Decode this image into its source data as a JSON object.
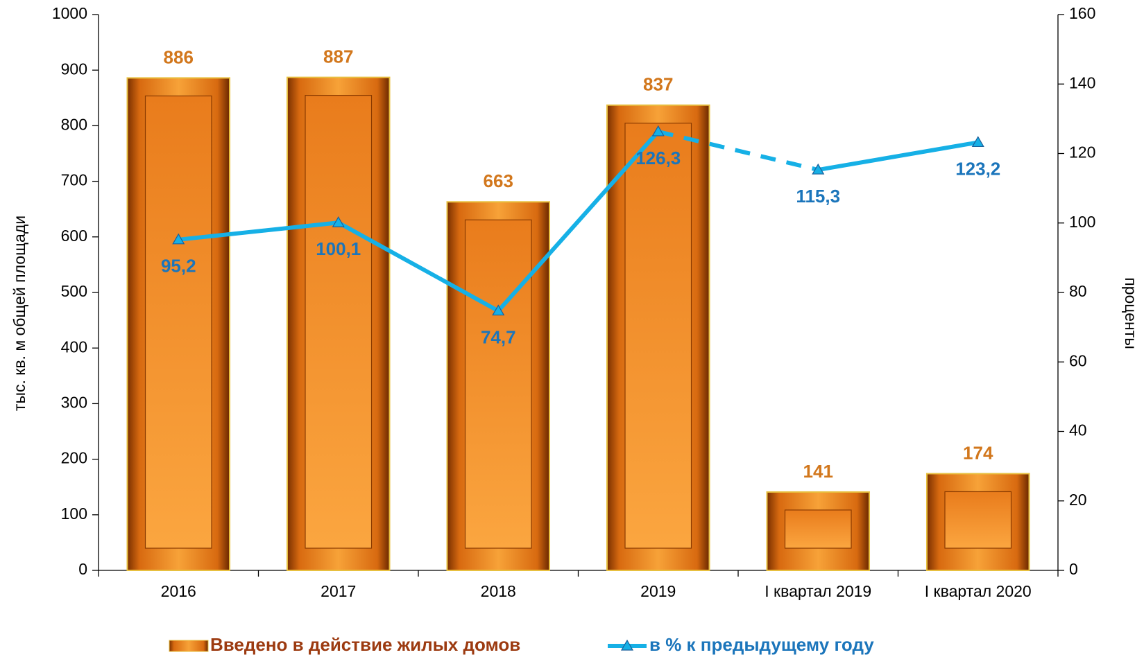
{
  "chart_data": {
    "type": "bar",
    "categories": [
      "2016",
      "2017",
      "2018",
      "2019",
      "I квартал 2019",
      "I квартал 2020"
    ],
    "ylabel": "тыс. кв. м общей площади",
    "y2label": "проценты",
    "ylim": [
      0,
      1000
    ],
    "yticks": [
      0,
      100,
      200,
      300,
      400,
      500,
      600,
      700,
      800,
      900,
      1000
    ],
    "y2lim": [
      0,
      160
    ],
    "y2ticks": [
      0,
      20,
      40,
      60,
      80,
      100,
      120,
      140,
      160
    ],
    "series": [
      {
        "name": "Введено в действие жилых домов",
        "type": "bar",
        "color": "#ee8a22",
        "label_color": "#d2771c",
        "values": [
          886,
          887,
          663,
          837,
          141,
          174
        ]
      },
      {
        "name": "в % к предыдущему году",
        "type": "line",
        "axis": "y2",
        "color": "#16b0e6",
        "label_color": "#1b75bb",
        "values": [
          95.2,
          100.1,
          74.7,
          126.3,
          115.3,
          123.2
        ],
        "value_labels": [
          "95,2",
          "100,1",
          "74,7",
          "126,3",
          "115,3",
          "123,2"
        ],
        "dashed_segment": [
          3,
          4
        ]
      }
    ],
    "legend": "bottom"
  }
}
